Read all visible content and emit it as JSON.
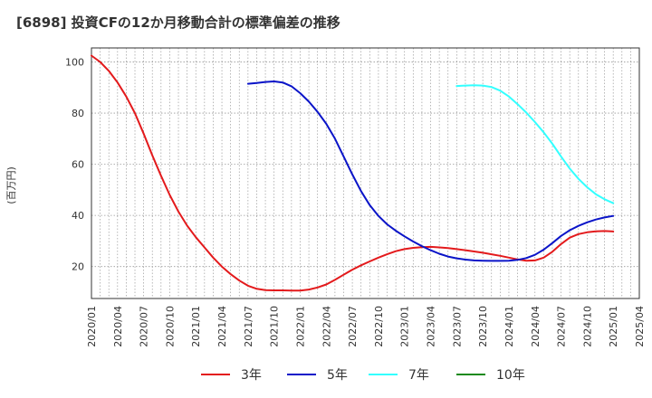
{
  "chart_data": {
    "type": "line",
    "title": "[6898]  投資CFの12か月移動合計の標準偏差の推移",
    "ylabel": "(百万円)",
    "xlabel": "",
    "ylim": [
      7.5,
      105.5
    ],
    "yticks": [
      20,
      40,
      60,
      80,
      100
    ],
    "xlim": [
      "2020-01",
      "2025-04"
    ],
    "x_tick_labels": [
      "2020/01",
      "2020/04",
      "2020/07",
      "2020/10",
      "2021/01",
      "2021/04",
      "2021/07",
      "2021/10",
      "2022/01",
      "2022/04",
      "2022/07",
      "2022/10",
      "2023/01",
      "2023/04",
      "2023/07",
      "2023/10",
      "2024/01",
      "2024/04",
      "2024/07",
      "2024/10",
      "2025/01",
      "2025/04"
    ],
    "grid": true,
    "legend_position": "bottom",
    "series": [
      {
        "name": "3年",
        "color": "#e31a1c",
        "points": [
          [
            "2020-01",
            102.5
          ],
          [
            "2020-02",
            100.0
          ],
          [
            "2020-03",
            96.5
          ],
          [
            "2020-04",
            92.0
          ],
          [
            "2020-05",
            86.5
          ],
          [
            "2020-06",
            80.0
          ],
          [
            "2020-07",
            72.0
          ],
          [
            "2020-08",
            63.5
          ],
          [
            "2020-09",
            55.5
          ],
          [
            "2020-10",
            48.0
          ],
          [
            "2020-11",
            41.5
          ],
          [
            "2020-12",
            36.0
          ],
          [
            "2021-01",
            31.5
          ],
          [
            "2021-02",
            27.5
          ],
          [
            "2021-03",
            23.5
          ],
          [
            "2021-04",
            20.0
          ],
          [
            "2021-05",
            17.0
          ],
          [
            "2021-06",
            14.5
          ],
          [
            "2021-07",
            12.5
          ],
          [
            "2021-08",
            11.3
          ],
          [
            "2021-09",
            10.8
          ],
          [
            "2021-10",
            10.7
          ],
          [
            "2021-11",
            10.7
          ],
          [
            "2021-12",
            10.6
          ],
          [
            "2022-01",
            10.6
          ],
          [
            "2022-02",
            11.0
          ],
          [
            "2022-03",
            11.8
          ],
          [
            "2022-04",
            13.0
          ],
          [
            "2022-05",
            14.8
          ],
          [
            "2022-06",
            16.8
          ],
          [
            "2022-07",
            18.8
          ],
          [
            "2022-08",
            20.5
          ],
          [
            "2022-09",
            22.0
          ],
          [
            "2022-10",
            23.5
          ],
          [
            "2022-11",
            24.8
          ],
          [
            "2022-12",
            26.0
          ],
          [
            "2023-01",
            26.8
          ],
          [
            "2023-02",
            27.3
          ],
          [
            "2023-03",
            27.6
          ],
          [
            "2023-04",
            27.7
          ],
          [
            "2023-05",
            27.5
          ],
          [
            "2023-06",
            27.2
          ],
          [
            "2023-07",
            26.8
          ],
          [
            "2023-08",
            26.4
          ],
          [
            "2023-09",
            25.9
          ],
          [
            "2023-10",
            25.4
          ],
          [
            "2023-11",
            24.8
          ],
          [
            "2023-12",
            24.2
          ],
          [
            "2024-01",
            23.5
          ],
          [
            "2024-02",
            22.8
          ],
          [
            "2024-03",
            22.3
          ],
          [
            "2024-04",
            22.4
          ],
          [
            "2024-05",
            23.5
          ],
          [
            "2024-06",
            25.8
          ],
          [
            "2024-07",
            28.8
          ],
          [
            "2024-08",
            31.3
          ],
          [
            "2024-09",
            32.7
          ],
          [
            "2024-10",
            33.4
          ],
          [
            "2024-11",
            33.8
          ],
          [
            "2024-12",
            33.9
          ],
          [
            "2025-01",
            33.7
          ]
        ]
      },
      {
        "name": "5年",
        "color": "#0a14c8",
        "points": [
          [
            "2021-07",
            91.5
          ],
          [
            "2021-08",
            91.8
          ],
          [
            "2021-09",
            92.2
          ],
          [
            "2021-10",
            92.4
          ],
          [
            "2021-11",
            92.0
          ],
          [
            "2021-12",
            90.5
          ],
          [
            "2022-01",
            87.8
          ],
          [
            "2022-02",
            84.5
          ],
          [
            "2022-03",
            80.5
          ],
          [
            "2022-04",
            75.8
          ],
          [
            "2022-05",
            70.0
          ],
          [
            "2022-06",
            63.0
          ],
          [
            "2022-07",
            56.0
          ],
          [
            "2022-08",
            49.5
          ],
          [
            "2022-09",
            44.0
          ],
          [
            "2022-10",
            39.8
          ],
          [
            "2022-11",
            36.5
          ],
          [
            "2022-12",
            34.0
          ],
          [
            "2023-01",
            31.8
          ],
          [
            "2023-02",
            29.8
          ],
          [
            "2023-03",
            28.0
          ],
          [
            "2023-04",
            26.4
          ],
          [
            "2023-05",
            25.0
          ],
          [
            "2023-06",
            23.9
          ],
          [
            "2023-07",
            23.2
          ],
          [
            "2023-08",
            22.7
          ],
          [
            "2023-09",
            22.4
          ],
          [
            "2023-10",
            22.3
          ],
          [
            "2023-11",
            22.2
          ],
          [
            "2023-12",
            22.2
          ],
          [
            "2024-01",
            22.3
          ],
          [
            "2024-02",
            22.6
          ],
          [
            "2024-03",
            23.3
          ],
          [
            "2024-04",
            24.6
          ],
          [
            "2024-05",
            26.6
          ],
          [
            "2024-06",
            29.2
          ],
          [
            "2024-07",
            32.0
          ],
          [
            "2024-08",
            34.2
          ],
          [
            "2024-09",
            35.9
          ],
          [
            "2024-10",
            37.3
          ],
          [
            "2024-11",
            38.4
          ],
          [
            "2024-12",
            39.2
          ],
          [
            "2025-01",
            39.8
          ]
        ]
      },
      {
        "name": "7年",
        "color": "#33ffff",
        "points": [
          [
            "2023-07",
            90.6
          ],
          [
            "2023-08",
            90.8
          ],
          [
            "2023-09",
            90.9
          ],
          [
            "2023-10",
            90.8
          ],
          [
            "2023-11",
            90.2
          ],
          [
            "2023-12",
            88.8
          ],
          [
            "2024-01",
            86.5
          ],
          [
            "2024-02",
            83.5
          ],
          [
            "2024-03",
            80.2
          ],
          [
            "2024-04",
            76.5
          ],
          [
            "2024-05",
            72.5
          ],
          [
            "2024-06",
            68.0
          ],
          [
            "2024-07",
            63.0
          ],
          [
            "2024-08",
            58.3
          ],
          [
            "2024-09",
            54.3
          ],
          [
            "2024-10",
            51.0
          ],
          [
            "2024-11",
            48.3
          ],
          [
            "2024-12",
            46.3
          ],
          [
            "2025-01",
            44.8
          ]
        ]
      },
      {
        "name": "10年",
        "color": "#1a8a1a",
        "points": []
      }
    ]
  }
}
